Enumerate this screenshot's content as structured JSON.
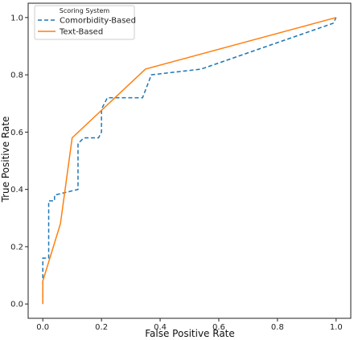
{
  "chart_data": {
    "type": "line",
    "title": "",
    "xlabel": "False Positive Rate",
    "ylabel": "True Positive Rate",
    "xlim": [
      -0.05,
      1.05
    ],
    "ylim": [
      -0.05,
      1.05
    ],
    "x_ticks": [
      "0.0",
      "0.2",
      "0.4",
      "0.6",
      "0.8",
      "1.0"
    ],
    "y_ticks": [
      "0.0",
      "0.2",
      "0.4",
      "0.6",
      "0.8",
      "1.0"
    ],
    "grid": false,
    "legend": {
      "title": "Scoring System",
      "placement": "top-left"
    },
    "series": [
      {
        "name": "Comorbidity-Based",
        "color": "#1f77b4",
        "style": "dashed",
        "x": [
          0.0,
          0.0,
          0.0,
          0.02,
          0.02,
          0.02,
          0.04,
          0.04,
          0.12,
          0.12,
          0.14,
          0.19,
          0.2,
          0.2,
          0.22,
          0.34,
          0.37,
          0.54,
          0.99,
          1.0
        ],
        "y": [
          0.0,
          0.12,
          0.16,
          0.16,
          0.24,
          0.36,
          0.36,
          0.38,
          0.4,
          0.56,
          0.58,
          0.58,
          0.6,
          0.68,
          0.72,
          0.72,
          0.8,
          0.82,
          0.98,
          1.0
        ]
      },
      {
        "name": "Text-Based",
        "color": "#ff7f0e",
        "style": "solid",
        "x": [
          0.0,
          0.0,
          0.06,
          0.1,
          0.35,
          1.0
        ],
        "y": [
          0.0,
          0.08,
          0.28,
          0.58,
          0.82,
          1.0
        ]
      }
    ]
  }
}
